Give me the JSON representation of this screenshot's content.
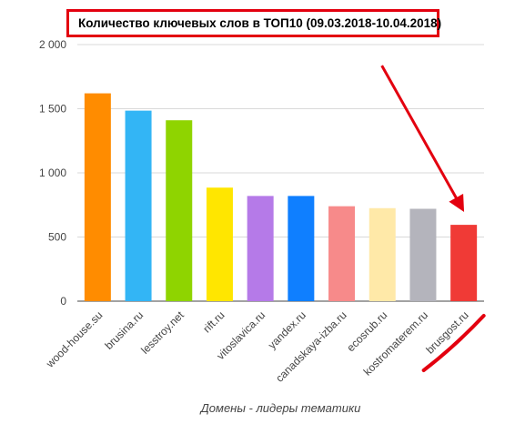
{
  "chart_data": {
    "type": "bar",
    "title": "Количество ключевых слов в ТОП10 (09.03.2018-10.04.2018)",
    "xlabel": "Домены - лидеры тематики",
    "ylabel": "",
    "ylim": [
      0,
      2000
    ],
    "yticks": [
      0,
      500,
      1000,
      1500,
      2000
    ],
    "ytick_labels": [
      "0",
      "500",
      "1 000",
      "1 500",
      "2 000"
    ],
    "grid": true,
    "categories": [
      "wood-house.su",
      "brusina.ru",
      "lesstroy.net",
      "rift.ru",
      "vitoslavica.ru",
      "yandex.ru",
      "canadskaya-izba.ru",
      "ecosrub.ru",
      "kostromaterem.ru",
      "brusgost.ru"
    ],
    "values": [
      1620,
      1485,
      1410,
      885,
      820,
      820,
      740,
      725,
      720,
      595
    ],
    "colors": [
      "#ff8c00",
      "#33b5f5",
      "#8fd400",
      "#ffe600",
      "#b57ae8",
      "#0f7fff",
      "#f78a8a",
      "#ffe9a8",
      "#b4b4bc",
      "#f03a36"
    ],
    "annotation": {
      "type": "arrow",
      "target": "brusgost.ru",
      "color": "#e3000f",
      "underline": true
    }
  }
}
